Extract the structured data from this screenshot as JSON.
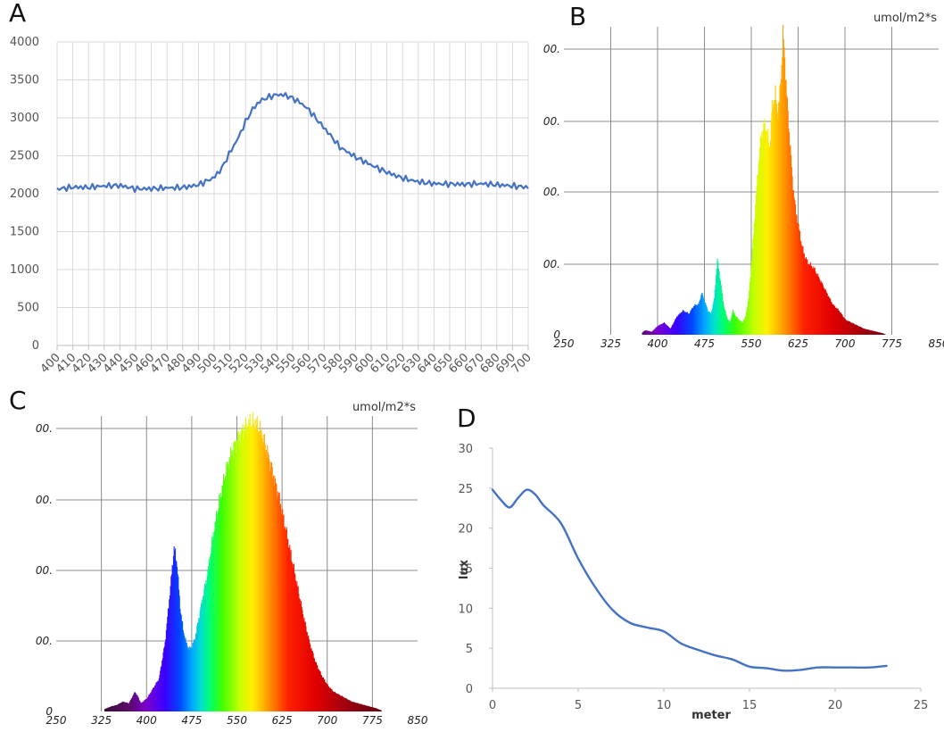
{
  "chart_data": [
    {
      "panel": "A",
      "type": "line",
      "xlim": [
        400,
        700
      ],
      "ylim": [
        0,
        4000
      ],
      "x_ticks": [
        "400",
        "410",
        "420",
        "430",
        "440",
        "450",
        "460",
        "470",
        "480",
        "490",
        "500",
        "510",
        "520",
        "530",
        "540",
        "550",
        "560",
        "570",
        "580",
        "590",
        "600",
        "610",
        "620",
        "630",
        "640",
        "650",
        "660",
        "670",
        "680",
        "690",
        "700"
      ],
      "y_ticks": [
        "0",
        "500",
        "1000",
        "1500",
        "2000",
        "2500",
        "3000",
        "3500",
        "4000"
      ],
      "color": "#4472C4",
      "series": [
        {
          "x": [
            400,
            410,
            420,
            430,
            440,
            450,
            460,
            470,
            480,
            490,
            500,
            505,
            510,
            515,
            520,
            525,
            530,
            535,
            540,
            545,
            550,
            555,
            560,
            565,
            570,
            575,
            580,
            590,
            600,
            610,
            620,
            630,
            640,
            650,
            660,
            670,
            680,
            690,
            700
          ],
          "y": [
            2080,
            2090,
            2070,
            2080,
            2090,
            2060,
            2080,
            2100,
            2100,
            2120,
            2200,
            2320,
            2520,
            2700,
            2930,
            3120,
            3230,
            3280,
            3320,
            3320,
            3280,
            3220,
            3130,
            3000,
            2870,
            2740,
            2600,
            2460,
            2360,
            2280,
            2220,
            2180,
            2150,
            2130,
            2110,
            2110,
            2100,
            2100,
            2100
          ]
        }
      ]
    },
    {
      "panel": "B",
      "type": "area",
      "unit_label": "umol/m2*s",
      "xlim": [
        250,
        850
      ],
      "x_ticks": [
        "250",
        "325",
        "400",
        "475",
        "550",
        "625",
        "700",
        "775",
        "850"
      ],
      "y_ticks": [
        "0",
        "00.",
        "00.",
        "00.",
        "00."
      ],
      "series": [
        {
          "x": [
            375,
            380,
            390,
            400,
            410,
            420,
            430,
            440,
            450,
            455,
            460,
            465,
            470,
            480,
            485,
            490,
            495,
            500,
            505,
            510,
            515,
            520,
            525,
            530,
            535,
            540,
            545,
            550,
            555,
            560,
            565,
            570,
            575,
            578,
            580,
            582,
            585,
            588,
            590,
            592,
            595,
            598,
            600,
            603,
            606,
            609,
            612,
            615,
            620,
            625,
            630,
            635,
            640,
            645,
            650,
            655,
            660,
            665,
            670,
            680,
            690,
            700,
            710,
            720,
            730,
            740,
            750,
            760,
            765
          ],
          "y": [
            0.008,
            0.015,
            0.01,
            0.03,
            0.04,
            0.02,
            0.06,
            0.08,
            0.07,
            0.09,
            0.1,
            0.1,
            0.14,
            0.08,
            0.07,
            0.12,
            0.25,
            0.18,
            0.1,
            0.06,
            0.04,
            0.08,
            0.06,
            0.05,
            0.04,
            0.06,
            0.12,
            0.25,
            0.4,
            0.55,
            0.66,
            0.7,
            0.68,
            0.62,
            0.66,
            0.74,
            0.78,
            0.8,
            0.76,
            0.74,
            0.8,
            0.9,
            1.0,
            0.92,
            0.8,
            0.7,
            0.62,
            0.52,
            0.42,
            0.36,
            0.3,
            0.26,
            0.24,
            0.23,
            0.22,
            0.2,
            0.18,
            0.16,
            0.14,
            0.1,
            0.08,
            0.05,
            0.04,
            0.03,
            0.02,
            0.015,
            0.01,
            0.005,
            0
          ]
        }
      ]
    },
    {
      "panel": "C",
      "type": "area",
      "unit_label": "umol/m2*s",
      "xlim": [
        250,
        850
      ],
      "x_ticks": [
        "250",
        "325",
        "400",
        "475",
        "550",
        "625",
        "700",
        "775",
        "850"
      ],
      "y_ticks": [
        "0",
        "00.",
        "00.",
        "00.",
        "00."
      ],
      "series": [
        {
          "x": [
            330,
            340,
            350,
            360,
            370,
            380,
            385,
            390,
            400,
            410,
            420,
            430,
            440,
            445,
            450,
            455,
            460,
            465,
            470,
            475,
            480,
            490,
            500,
            510,
            520,
            530,
            540,
            550,
            560,
            570,
            580,
            590,
            600,
            610,
            620,
            630,
            640,
            650,
            660,
            670,
            680,
            690,
            700,
            710,
            720,
            730,
            740,
            750,
            760,
            770,
            780,
            790
          ],
          "y": [
            0.015,
            0.03,
            0.04,
            0.06,
            0.05,
            0.12,
            0.09,
            0.05,
            0.08,
            0.14,
            0.2,
            0.42,
            0.8,
            1.0,
            0.9,
            0.64,
            0.5,
            0.42,
            0.38,
            0.4,
            0.45,
            0.65,
            0.83,
            1.08,
            1.28,
            1.45,
            1.58,
            1.66,
            1.72,
            1.76,
            1.76,
            1.7,
            1.58,
            1.44,
            1.3,
            1.12,
            0.94,
            0.76,
            0.58,
            0.42,
            0.3,
            0.22,
            0.16,
            0.12,
            0.1,
            0.08,
            0.06,
            0.05,
            0.04,
            0.03,
            0.02,
            0.005
          ]
        }
      ]
    },
    {
      "panel": "D",
      "type": "line",
      "xlabel": "meter",
      "ylabel": "lux",
      "xlim": [
        0,
        25
      ],
      "ylim": [
        0,
        30
      ],
      "x_ticks": [
        "0",
        "5",
        "10",
        "15",
        "20",
        "25"
      ],
      "y_ticks": [
        "0",
        "5",
        "10",
        "15",
        "20",
        "25",
        "30"
      ],
      "color": "#4472C4",
      "series": [
        {
          "x": [
            0,
            0.5,
            1,
            1.5,
            2,
            2.5,
            3,
            4,
            5,
            6,
            7,
            8,
            9,
            10,
            11,
            12,
            13,
            14,
            15,
            16,
            17,
            18,
            19,
            20,
            21,
            22,
            23
          ],
          "y": [
            24.8,
            23.5,
            22.6,
            23.8,
            24.8,
            24.2,
            22.8,
            20.6,
            16.2,
            12.6,
            9.8,
            8.2,
            7.6,
            7.1,
            5.6,
            4.8,
            4.1,
            3.6,
            2.7,
            2.5,
            2.2,
            2.3,
            2.6,
            2.6,
            2.6,
            2.6,
            2.8
          ]
        }
      ]
    }
  ],
  "panels": {
    "A": {
      "letter": "A"
    },
    "B": {
      "letter": "B"
    },
    "C": {
      "letter": "C"
    },
    "D": {
      "letter": "D"
    }
  }
}
